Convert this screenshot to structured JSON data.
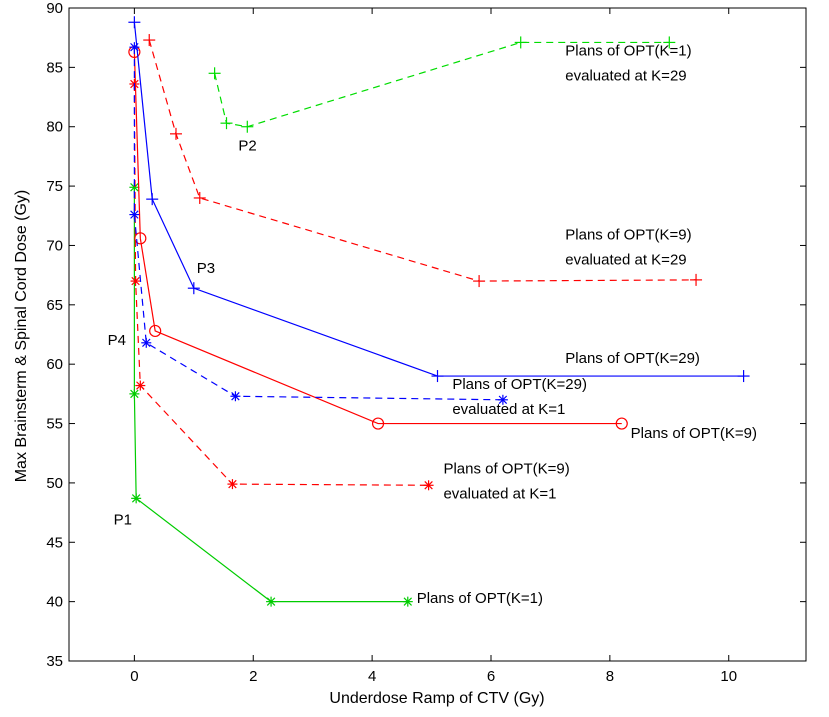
{
  "chart_data": {
    "type": "line",
    "title": "",
    "xlabel": "Underdose Ramp of CTV (Gy)",
    "ylabel": "Max Brainsterm & Spinal Cord Dose (Gy)",
    "xlim": [
      -1.1,
      11.3
    ],
    "ylim": [
      35,
      90
    ],
    "xticks": [
      0,
      2,
      4,
      6,
      8,
      10
    ],
    "yticks": [
      35,
      40,
      45,
      50,
      55,
      60,
      65,
      70,
      75,
      80,
      85,
      90
    ],
    "grid": false,
    "series": [
      {
        "label": "Plans of OPT(K=1)",
        "color": "#00cc00",
        "line_style": "solid",
        "marker": "asterisk",
        "x": [
          0.0,
          0.0,
          0.03,
          2.3,
          4.6
        ],
        "y": [
          74.9,
          57.5,
          48.7,
          40.0,
          40.0
        ]
      },
      {
        "label": "Plans of OPT(K=1) evaluated at K=29",
        "color": "#00dd00",
        "line_style": "dashed",
        "marker": "plus",
        "x": [
          1.35,
          1.55,
          1.9,
          6.5,
          9.0
        ],
        "y": [
          84.5,
          80.3,
          80.0,
          87.1,
          87.1
        ]
      },
      {
        "label": "Plans of OPT(K=9)",
        "color": "#ff0000",
        "line_style": "solid",
        "marker": "circle",
        "x": [
          0.0,
          0.1,
          0.35,
          4.1,
          8.2
        ],
        "y": [
          86.3,
          70.6,
          62.8,
          55.0,
          55.0
        ]
      },
      {
        "label": "Plans of OPT(K=9) evaluated at K=1",
        "color": "#ff0000",
        "line_style": "dashed",
        "marker": "asterisk",
        "x": [
          0.0,
          0.02,
          0.1,
          1.65,
          4.95
        ],
        "y": [
          83.6,
          67.0,
          58.2,
          49.9,
          49.8
        ]
      },
      {
        "label": "Plans of OPT(K=9) evaluated at K=29",
        "color": "#ff0000",
        "line_style": "dashed",
        "marker": "plus",
        "x": [
          0.25,
          0.7,
          1.1,
          5.8,
          9.45
        ],
        "y": [
          87.3,
          79.4,
          74.0,
          67.0,
          67.1
        ]
      },
      {
        "label": "Plans of OPT(K=29)",
        "color": "#0000ff",
        "line_style": "solid",
        "marker": "plus",
        "x": [
          0.0,
          0.3,
          1.0,
          5.1,
          10.25
        ],
        "y": [
          88.8,
          73.9,
          66.4,
          59.0,
          59.0
        ]
      },
      {
        "label": "Plans of OPT(K=29) evaluated at K=1",
        "color": "#0000ff",
        "line_style": "dashed",
        "marker": "asterisk",
        "x": [
          0.0,
          0.0,
          0.2,
          1.7,
          6.2
        ],
        "y": [
          86.7,
          72.6,
          61.8,
          57.3,
          57.0
        ]
      }
    ],
    "annotations": [
      {
        "text": "Plans of OPT(K=1)",
        "x": 7.25,
        "y": 86.0
      },
      {
        "text": "evaluated at K=29",
        "x": 7.25,
        "y": 83.9
      },
      {
        "text": "Plans of OPT(K=9)",
        "x": 7.25,
        "y": 70.5
      },
      {
        "text": "evaluated at K=29",
        "x": 7.25,
        "y": 68.4
      },
      {
        "text": "Plans of OPT(K=29)",
        "x": 7.25,
        "y": 60.1
      },
      {
        "text": "Plans of OPT(K=29)",
        "x": 5.35,
        "y": 57.9
      },
      {
        "text": "evaluated at K=1",
        "x": 5.35,
        "y": 55.8
      },
      {
        "text": "Plans of OPT(K=9)",
        "x": 8.35,
        "y": 53.8
      },
      {
        "text": "Plans of OPT(K=9)",
        "x": 5.2,
        "y": 50.8
      },
      {
        "text": "evaluated at K=1",
        "x": 5.2,
        "y": 48.7
      },
      {
        "text": "Plans of OPT(K=1)",
        "x": 4.75,
        "y": 39.9
      },
      {
        "text": "P1",
        "x": -0.35,
        "y": 46.5
      },
      {
        "text": "P2",
        "x": 1.75,
        "y": 78.0
      },
      {
        "text": "P3",
        "x": 1.05,
        "y": 67.7
      },
      {
        "text": "P4",
        "x": -0.45,
        "y": 61.6
      }
    ]
  }
}
